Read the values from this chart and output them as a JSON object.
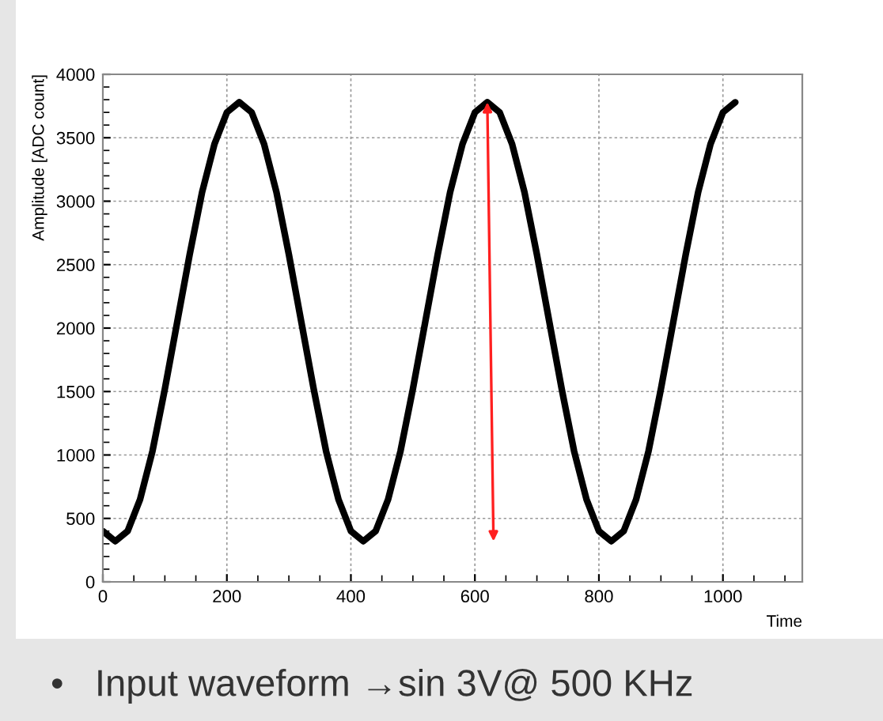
{
  "chart_data": {
    "type": "line",
    "xlabel": "Time",
    "ylabel": "Amplitude [ADC count]",
    "x": [
      0,
      20,
      40,
      60,
      80,
      100,
      120,
      140,
      160,
      180,
      200,
      220,
      240,
      260,
      280,
      300,
      320,
      340,
      360,
      380,
      400,
      420,
      440,
      460,
      480,
      500,
      520,
      540,
      560,
      580,
      600,
      620,
      640,
      660,
      680,
      700,
      720,
      740,
      760,
      780,
      800,
      820,
      840,
      860,
      880,
      900,
      920,
      940,
      960,
      980,
      1000,
      1020
    ],
    "series": [
      {
        "color": "#000000",
        "values": [
          400,
          320,
          400,
          650,
          1030,
          1520,
          2050,
          2580,
          3070,
          3450,
          3700,
          3780,
          3700,
          3450,
          3070,
          2580,
          2050,
          1520,
          1030,
          650,
          400,
          320,
          400,
          650,
          1030,
          1520,
          2050,
          2580,
          3070,
          3450,
          3700,
          3780,
          3700,
          3450,
          3070,
          2580,
          2050,
          1520,
          1030,
          650,
          400,
          320,
          400,
          650,
          1030,
          1520,
          2050,
          2580,
          3070,
          3450,
          3700,
          3780
        ]
      }
    ],
    "xlim": [
      0,
      1128
    ],
    "ylim": [
      0,
      4000
    ],
    "xticks": [
      0,
      200,
      400,
      600,
      800,
      1000
    ],
    "yticks": [
      0,
      500,
      1000,
      1500,
      2000,
      2500,
      3000,
      3500,
      4000
    ],
    "grid": true,
    "marker": "none",
    "line_style": "solid",
    "annotations": [
      "•   Input waveform →sin 3V@ 500 KHz"
    ]
  }
}
